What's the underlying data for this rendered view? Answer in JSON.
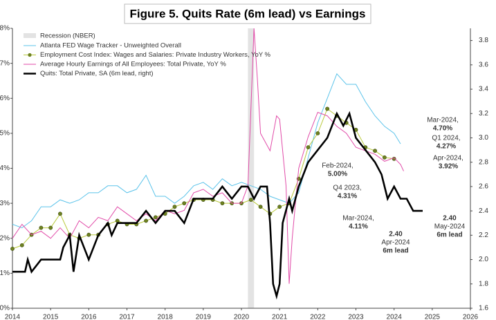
{
  "chart_data": {
    "type": "line",
    "title": "Figure 5. Quits Rate (6m lead) vs Earnings",
    "xlim": [
      2014,
      2026
    ],
    "xticks": [
      2014,
      2015,
      2016,
      2017,
      2018,
      2019,
      2020,
      2021,
      2022,
      2023,
      2024,
      2025,
      2026
    ],
    "ylim": [
      0,
      8
    ],
    "yticks": [
      {
        "value": 0,
        "label": "0%"
      },
      {
        "value": 1,
        "label": "1%"
      },
      {
        "value": 2,
        "label": "2%"
      },
      {
        "value": 3,
        "label": "3%"
      },
      {
        "value": 4,
        "label": "4%"
      },
      {
        "value": 5,
        "label": "5%"
      },
      {
        "value": 6,
        "label": "6%"
      },
      {
        "value": 7,
        "label": "7%"
      },
      {
        "value": 8,
        "label": "8%"
      }
    ],
    "y2lim": [
      1.6,
      3.9
    ],
    "y2ticks": [
      1.6,
      1.8,
      {
        "value": 2,
        "label": "2.0"
      },
      2.2,
      2.4,
      2.6,
      2.8,
      {
        "value": 3,
        "label": "3.0"
      },
      3.2,
      3.4,
      3.6,
      3.8
    ],
    "shading": {
      "name": "Recession (NBER)",
      "color": "#e3e3e3",
      "x": [
        2020.17,
        2020.33
      ]
    },
    "series": [
      {
        "name": "Atlanta FED Wage Tracker - Unweighted Overall",
        "color": "#5bc3ea",
        "x": [
          2014.0,
          2014.25,
          2014.5,
          2014.75,
          2015.0,
          2015.25,
          2015.5,
          2015.75,
          2016.0,
          2016.25,
          2016.5,
          2016.75,
          2017.0,
          2017.25,
          2017.5,
          2017.75,
          2018.0,
          2018.25,
          2018.5,
          2018.75,
          2019.0,
          2019.25,
          2019.5,
          2019.75,
          2020.0,
          2020.25,
          2020.5,
          2020.75,
          2021.0,
          2021.25,
          2021.5,
          2021.75,
          2022.0,
          2022.25,
          2022.5,
          2022.75,
          2023.0,
          2023.25,
          2023.5,
          2023.75,
          2024.0,
          2024.17
        ],
        "values": [
          2.4,
          2.3,
          2.5,
          2.9,
          2.9,
          3.1,
          3.0,
          3.1,
          3.3,
          3.3,
          3.5,
          3.5,
          3.3,
          3.4,
          3.8,
          3.2,
          3.2,
          3.0,
          3.2,
          3.5,
          3.6,
          3.4,
          3.7,
          3.5,
          3.6,
          3.5,
          3.4,
          3.2,
          3.1,
          3.0,
          3.3,
          4.3,
          5.3,
          6.0,
          6.7,
          6.4,
          6.4,
          5.9,
          5.5,
          5.2,
          5.0,
          4.7
        ]
      },
      {
        "name": "Employment Cost Index: Wages and Salaries: Private Industry Workers, YoY %",
        "color": "#b8c93a",
        "marker": "#6e8220",
        "x": [
          2014.0,
          2014.25,
          2014.5,
          2014.75,
          2015.0,
          2015.25,
          2015.5,
          2015.75,
          2016.0,
          2016.25,
          2016.5,
          2016.75,
          2017.0,
          2017.25,
          2017.5,
          2017.75,
          2018.0,
          2018.25,
          2018.5,
          2018.75,
          2019.0,
          2019.25,
          2019.5,
          2019.75,
          2020.0,
          2020.25,
          2020.5,
          2020.75,
          2021.0,
          2021.25,
          2021.5,
          2021.75,
          2022.0,
          2022.25,
          2022.5,
          2022.75,
          2023.0,
          2023.25,
          2023.5,
          2023.75,
          2024.0
        ],
        "values": [
          1.7,
          1.8,
          2.1,
          2.3,
          2.3,
          2.7,
          2.1,
          2.0,
          2.1,
          2.1,
          2.4,
          2.5,
          2.4,
          2.4,
          2.5,
          2.6,
          2.7,
          2.9,
          3.0,
          3.1,
          3.1,
          3.1,
          3.0,
          3.0,
          3.0,
          3.1,
          2.9,
          2.7,
          2.9,
          3.0,
          3.7,
          4.6,
          5.0,
          5.7,
          5.5,
          5.3,
          5.1,
          4.6,
          4.5,
          4.31,
          4.27
        ]
      },
      {
        "name": "Average Hourly Earnings of All Employees: Total Private, YoY %",
        "color": "#e14aa8",
        "x": [
          2014.0,
          2014.25,
          2014.5,
          2014.75,
          2015.0,
          2015.25,
          2015.5,
          2015.75,
          2016.0,
          2016.25,
          2016.5,
          2016.75,
          2017.0,
          2017.25,
          2017.5,
          2017.75,
          2018.0,
          2018.25,
          2018.5,
          2018.75,
          2019.0,
          2019.25,
          2019.5,
          2019.75,
          2020.0,
          2020.17,
          2020.33,
          2020.42,
          2020.5,
          2020.75,
          2020.92,
          2021.0,
          2021.17,
          2021.25,
          2021.33,
          2021.5,
          2021.75,
          2022.0,
          2022.25,
          2022.5,
          2022.75,
          2023.0,
          2023.25,
          2023.5,
          2023.75,
          2024.0,
          2024.17,
          2024.25
        ],
        "values": [
          2.0,
          2.4,
          2.1,
          2.2,
          2.0,
          2.3,
          2.0,
          2.5,
          2.3,
          2.6,
          2.5,
          2.9,
          2.7,
          2.5,
          2.7,
          2.5,
          2.8,
          2.7,
          2.8,
          3.3,
          3.4,
          3.2,
          3.3,
          3.0,
          3.0,
          3.5,
          8.0,
          6.5,
          5.0,
          4.5,
          5.5,
          5.4,
          3.5,
          0.7,
          2.0,
          4.0,
          4.9,
          5.6,
          5.5,
          5.2,
          5.0,
          4.6,
          4.5,
          4.4,
          4.2,
          4.3,
          4.11,
          3.92
        ]
      },
      {
        "name": "Quits: Total Private, SA (6m lead, right)",
        "color": "#000000",
        "axis": "y2",
        "x": [
          2014.0,
          2014.33,
          2014.4,
          2014.5,
          2014.75,
          2015.0,
          2015.25,
          2015.33,
          2015.5,
          2015.6,
          2015.75,
          2016.0,
          2016.25,
          2016.5,
          2016.6,
          2016.75,
          2017.0,
          2017.25,
          2017.5,
          2017.75,
          2018.0,
          2018.25,
          2018.5,
          2018.75,
          2019.0,
          2019.25,
          2019.5,
          2019.75,
          2020.0,
          2020.17,
          2020.33,
          2020.5,
          2020.67,
          2020.75,
          2020.83,
          2020.92,
          2021.0,
          2021.08,
          2021.25,
          2021.33,
          2021.5,
          2021.75,
          2022.0,
          2022.25,
          2022.5,
          2022.67,
          2022.83,
          2023.0,
          2023.25,
          2023.5,
          2023.67,
          2023.83,
          2024.0,
          2024.17,
          2024.33,
          2024.5,
          2024.67,
          2024.75
        ],
        "values": [
          1.9,
          1.9,
          2.0,
          1.9,
          2.0,
          2.0,
          2.0,
          2.1,
          2.2,
          1.9,
          2.2,
          2.0,
          2.2,
          2.3,
          2.2,
          2.3,
          2.3,
          2.3,
          2.4,
          2.3,
          2.4,
          2.4,
          2.3,
          2.5,
          2.5,
          2.5,
          2.6,
          2.5,
          2.6,
          2.6,
          2.5,
          2.6,
          2.6,
          2.3,
          1.8,
          1.7,
          1.8,
          2.3,
          2.5,
          2.4,
          2.6,
          2.8,
          2.9,
          3.0,
          3.2,
          3.1,
          3.2,
          3.0,
          2.9,
          2.8,
          2.7,
          2.5,
          2.6,
          2.5,
          2.5,
          2.4,
          2.4,
          2.4
        ]
      }
    ],
    "annotations": [
      {
        "lines": [
          "Mar-2024,",
          "4.70%"
        ],
        "color": "#29a9e1"
      },
      {
        "lines": [
          "Q1 2024,",
          "4.27%"
        ],
        "color": "#93a81c"
      },
      {
        "lines": [
          "Apr-2024,",
          "3.92%"
        ],
        "color": "#d62f93"
      },
      {
        "lines": [
          "Feb-2024,",
          "5.00%"
        ],
        "color": "#29a9e1"
      },
      {
        "lines": [
          "Q4 2023,",
          "4.31%"
        ],
        "color": "#93a81c"
      },
      {
        "lines": [
          "Mar-2024,",
          "4.11%"
        ],
        "color": "#d62f93"
      },
      {
        "lines": [
          "2.40",
          "Apr-2024",
          "6m lead"
        ],
        "color": "#111111"
      },
      {
        "lines": [
          "2.40",
          "May-2024",
          "6m lead"
        ],
        "color": "#111111"
      }
    ]
  }
}
